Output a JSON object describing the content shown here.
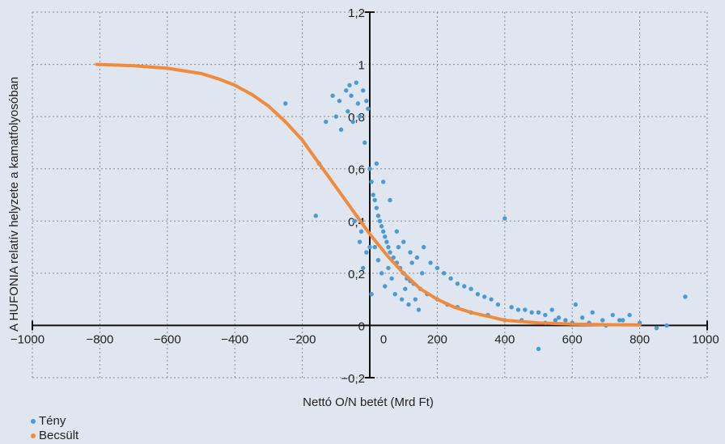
{
  "chart_data": {
    "type": "scatter",
    "xlabel": "Nettó O/N betét (Mrd Ft)",
    "ylabel": "A HUFONIA relatív helyzete a kamatfolyosóban",
    "xlim": [
      -1000,
      1000
    ],
    "ylim": [
      -0.2,
      1.2
    ],
    "x_ticks": [
      "−1000",
      "−800",
      "−600",
      "−400",
      "−200",
      "0",
      "200",
      "400",
      "600",
      "800",
      "1000"
    ],
    "y_ticks": [
      "−0,2",
      "0",
      "0,2",
      "0,4",
      "0,6",
      "0,8",
      "1",
      "1,2"
    ],
    "grid": true,
    "series": [
      {
        "name": "Tény",
        "color": "#4a9ad4",
        "marker": "point",
        "points": [
          [
            -250,
            0.85
          ],
          [
            -160,
            0.42
          ],
          [
            -150,
            0.62
          ],
          [
            -130,
            0.78
          ],
          [
            -110,
            0.88
          ],
          [
            -100,
            0.8
          ],
          [
            -90,
            0.86
          ],
          [
            -85,
            0.75
          ],
          [
            -70,
            0.9
          ],
          [
            -65,
            0.82
          ],
          [
            -60,
            0.92
          ],
          [
            -55,
            0.88
          ],
          [
            -50,
            0.78
          ],
          [
            -45,
            0.4
          ],
          [
            -40,
            0.93
          ],
          [
            -35,
            0.85
          ],
          [
            -30,
            0.8
          ],
          [
            -25,
            0.36
          ],
          [
            -20,
            0.9
          ],
          [
            -15,
            0.7
          ],
          [
            -10,
            0.86
          ],
          [
            -5,
            0.83
          ],
          [
            0,
            0.6
          ],
          [
            5,
            0.55
          ],
          [
            10,
            0.5
          ],
          [
            15,
            0.48
          ],
          [
            20,
            0.45
          ],
          [
            25,
            0.42
          ],
          [
            30,
            0.4
          ],
          [
            35,
            0.38
          ],
          [
            40,
            0.36
          ],
          [
            45,
            0.34
          ],
          [
            50,
            0.32
          ],
          [
            55,
            0.3
          ],
          [
            60,
            0.28
          ],
          [
            70,
            0.26
          ],
          [
            80,
            0.24
          ],
          [
            90,
            0.22
          ],
          [
            100,
            0.2
          ],
          [
            110,
            0.18
          ],
          [
            120,
            0.17
          ],
          [
            130,
            0.16
          ],
          [
            150,
            0.14
          ],
          [
            170,
            0.12
          ],
          [
            200,
            0.1
          ],
          [
            230,
            0.08
          ],
          [
            260,
            0.07
          ],
          [
            300,
            0.05
          ],
          [
            350,
            0.04
          ],
          [
            400,
            0.41
          ],
          [
            400,
            0.02
          ],
          [
            450,
            0.02
          ],
          [
            500,
            -0.09
          ],
          [
            520,
            0.01
          ],
          [
            550,
            0.02
          ],
          [
            600,
            0.01
          ],
          [
            650,
            0.01
          ],
          [
            700,
            0.0
          ],
          [
            750,
            0.02
          ],
          [
            800,
            0.01
          ],
          [
            850,
            -0.01
          ],
          [
            880,
            0.0
          ],
          [
            935,
            0.11
          ],
          [
            20,
            0.62
          ],
          [
            40,
            0.55
          ],
          [
            60,
            0.48
          ],
          [
            80,
            0.36
          ],
          [
            100,
            0.32
          ],
          [
            120,
            0.28
          ],
          [
            140,
            0.26
          ],
          [
            160,
            0.3
          ],
          [
            180,
            0.24
          ],
          [
            200,
            0.22
          ],
          [
            220,
            0.2
          ],
          [
            240,
            0.18
          ],
          [
            260,
            0.16
          ],
          [
            280,
            0.15
          ],
          [
            300,
            0.14
          ],
          [
            320,
            0.12
          ],
          [
            340,
            0.11
          ],
          [
            360,
            0.1
          ],
          [
            380,
            0.08
          ],
          [
            420,
            0.07
          ],
          [
            440,
            0.06
          ],
          [
            460,
            0.06
          ],
          [
            480,
            0.05
          ],
          [
            500,
            0.05
          ],
          [
            520,
            0.04
          ],
          [
            540,
            0.06
          ],
          [
            560,
            0.03
          ],
          [
            580,
            0.02
          ],
          [
            610,
            0.08
          ],
          [
            630,
            0.03
          ],
          [
            660,
            0.05
          ],
          [
            690,
            0.02
          ],
          [
            720,
            0.04
          ],
          [
            740,
            0.02
          ],
          [
            770,
            0.04
          ],
          [
            15,
            0.3
          ],
          [
            25,
            0.25
          ],
          [
            35,
            0.2
          ],
          [
            45,
            0.15
          ],
          [
            55,
            0.22
          ],
          [
            65,
            0.18
          ],
          [
            75,
            0.12
          ],
          [
            85,
            0.3
          ],
          [
            95,
            0.1
          ],
          [
            105,
            0.14
          ],
          [
            115,
            0.08
          ],
          [
            125,
            0.24
          ],
          [
            135,
            0.1
          ],
          [
            145,
            0.06
          ],
          [
            155,
            0.2
          ],
          [
            -30,
            0.32
          ],
          [
            -20,
            0.22
          ],
          [
            -10,
            0.28
          ],
          [
            0,
            0.3
          ],
          [
            5,
            0.12
          ]
        ]
      },
      {
        "name": "Becsült",
        "color": "#f08a3c",
        "marker": "line",
        "points": [
          [
            -810,
            1.0
          ],
          [
            -700,
            0.995
          ],
          [
            -600,
            0.985
          ],
          [
            -500,
            0.965
          ],
          [
            -450,
            0.945
          ],
          [
            -400,
            0.92
          ],
          [
            -350,
            0.885
          ],
          [
            -300,
            0.84
          ],
          [
            -250,
            0.78
          ],
          [
            -200,
            0.71
          ],
          [
            -150,
            0.62
          ],
          [
            -100,
            0.53
          ],
          [
            -50,
            0.44
          ],
          [
            0,
            0.35
          ],
          [
            50,
            0.27
          ],
          [
            100,
            0.2
          ],
          [
            150,
            0.14
          ],
          [
            200,
            0.1
          ],
          [
            250,
            0.07
          ],
          [
            300,
            0.05
          ],
          [
            350,
            0.035
          ],
          [
            400,
            0.02
          ],
          [
            500,
            0.01
          ],
          [
            600,
            0.005
          ],
          [
            700,
            0.003
          ],
          [
            800,
            0.002
          ]
        ]
      }
    ]
  }
}
